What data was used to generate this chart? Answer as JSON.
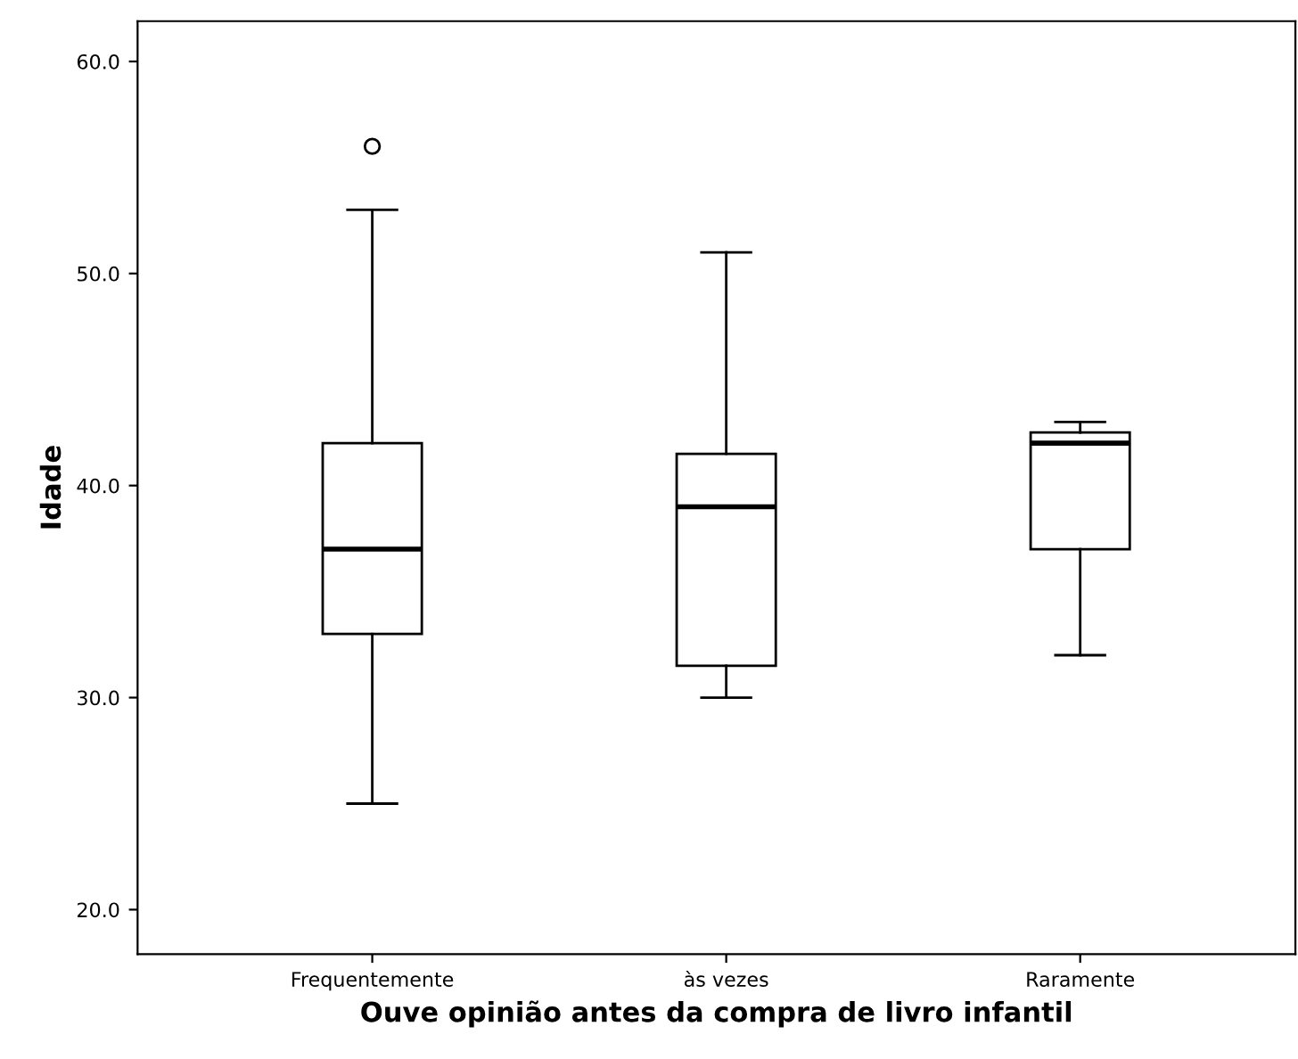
{
  "chart_data": {
    "type": "box",
    "xlabel": "Ouve opinião antes da compra de livro infantil",
    "ylabel": "Idade",
    "categories": [
      "Frequentemente",
      "às vezes",
      "Raramente"
    ],
    "boxes": [
      {
        "low": 25,
        "q1": 33,
        "median": 37,
        "q3": 42,
        "high": 53,
        "outliers": [
          56
        ]
      },
      {
        "low": 30,
        "q1": 31.5,
        "median": 39,
        "q3": 41.5,
        "high": 51
      },
      {
        "low": 32,
        "q1": 37,
        "median": 42,
        "q3": 42.5,
        "high": 43
      }
    ],
    "ylim": [
      17.9,
      61.9
    ],
    "yticks": [
      {
        "value": 20,
        "label": "20.0"
      },
      {
        "value": 30,
        "label": "30.0"
      },
      {
        "value": 40,
        "label": "40.0"
      },
      {
        "value": 50,
        "label": "50.0"
      },
      {
        "value": 60,
        "label": "60.0"
      }
    ],
    "grid": false
  }
}
